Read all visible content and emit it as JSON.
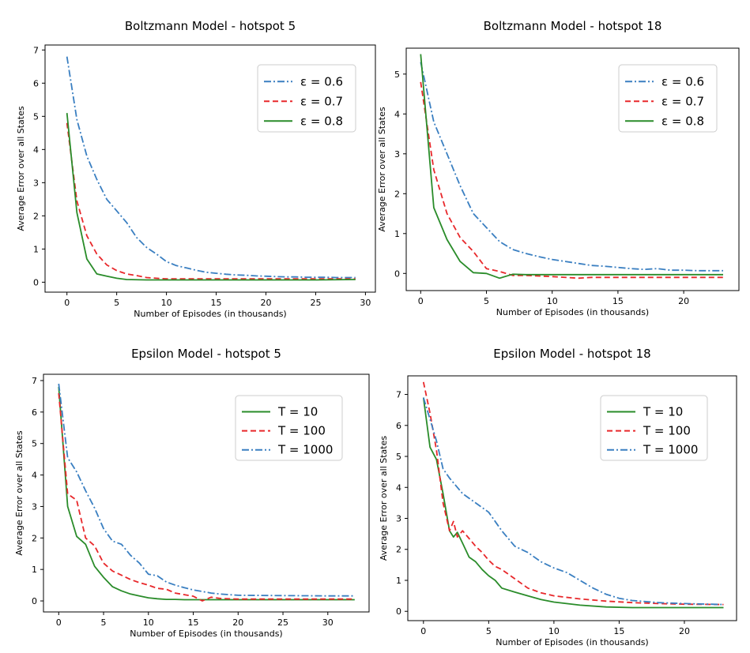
{
  "chart_data": [
    {
      "type": "line",
      "title": "Boltzmann Model - hotspot 5",
      "xlabel": "Number of Episodes (in thousands)",
      "ylabel": "Average Error over all States",
      "xlim": [
        -2.2,
        31
      ],
      "ylim": [
        -0.3,
        7.15
      ],
      "xticks": [
        0,
        5,
        10,
        15,
        20,
        25,
        30
      ],
      "yticks": [
        0,
        1,
        2,
        3,
        4,
        5,
        6,
        7
      ],
      "legend_position": "top-right",
      "series": [
        {
          "name": "ε = 0.6",
          "color": "#3a7fc1",
          "style": "dashdot",
          "x": [
            0,
            1,
            2,
            3,
            4,
            5,
            6,
            7,
            8,
            9,
            10,
            11,
            12,
            13,
            14,
            15,
            16,
            17,
            18,
            19,
            20,
            21,
            22,
            23,
            24,
            25,
            26,
            27,
            28,
            29
          ],
          "y": [
            6.8,
            4.9,
            3.8,
            3.1,
            2.5,
            2.15,
            1.8,
            1.35,
            1.05,
            0.85,
            0.62,
            0.5,
            0.43,
            0.36,
            0.3,
            0.27,
            0.24,
            0.22,
            0.21,
            0.19,
            0.18,
            0.17,
            0.16,
            0.16,
            0.15,
            0.15,
            0.15,
            0.14,
            0.14,
            0.14
          ]
        },
        {
          "name": "ε = 0.7",
          "color": "#e8282b",
          "style": "dashed",
          "x": [
            0,
            1,
            2,
            3,
            4,
            5,
            6,
            7,
            8,
            9,
            10,
            12,
            15,
            20,
            25,
            29
          ],
          "y": [
            4.8,
            2.45,
            1.4,
            0.85,
            0.52,
            0.35,
            0.25,
            0.2,
            0.14,
            0.12,
            0.1,
            0.1,
            0.1,
            0.1,
            0.1,
            0.1
          ]
        },
        {
          "name": "ε = 0.8",
          "color": "#2a8c2a",
          "style": "solid",
          "x": [
            0,
            1,
            2,
            3,
            4,
            5,
            6,
            8,
            10,
            15,
            20,
            25,
            29
          ],
          "y": [
            5.1,
            2.1,
            0.7,
            0.25,
            0.18,
            0.12,
            0.08,
            0.07,
            0.07,
            0.07,
            0.07,
            0.07,
            0.08
          ]
        }
      ]
    },
    {
      "type": "line",
      "title": "Boltzmann Model - hotspot 18",
      "xlabel": "Number of Episodes (in thousands)",
      "ylabel": "Average Error over all States",
      "xlim": [
        -1.1,
        24.2
      ],
      "ylim": [
        -0.43,
        5.65
      ],
      "xticks": [
        0,
        5,
        10,
        15,
        20
      ],
      "yticks": [
        0,
        1,
        2,
        3,
        4,
        5
      ],
      "legend_position": "top-right",
      "series": [
        {
          "name": "ε = 0.6",
          "color": "#3a7fc1",
          "style": "dashdot",
          "x": [
            0,
            1,
            2,
            3,
            4,
            5,
            6,
            7,
            8,
            9,
            10,
            11,
            12,
            13,
            14,
            15,
            16,
            17,
            18,
            19,
            20,
            21,
            22,
            23
          ],
          "y": [
            5.3,
            3.8,
            3.0,
            2.2,
            1.5,
            1.15,
            0.8,
            0.6,
            0.5,
            0.42,
            0.35,
            0.3,
            0.25,
            0.2,
            0.18,
            0.15,
            0.12,
            0.1,
            0.12,
            0.08,
            0.08,
            0.07,
            0.07,
            0.07
          ]
        },
        {
          "name": "ε = 0.7",
          "color": "#e8282b",
          "style": "dashed",
          "x": [
            0,
            1,
            2,
            3,
            4,
            5,
            6,
            7,
            8,
            10,
            12,
            13,
            15,
            18,
            20,
            23
          ],
          "y": [
            4.8,
            2.6,
            1.5,
            0.9,
            0.55,
            0.12,
            0.05,
            -0.05,
            -0.05,
            -0.08,
            -0.12,
            -0.1,
            -0.1,
            -0.1,
            -0.1,
            -0.1
          ]
        },
        {
          "name": "ε = 0.8",
          "color": "#2a8c2a",
          "style": "solid",
          "x": [
            0,
            1,
            2,
            3,
            4,
            5,
            6,
            7,
            8,
            10,
            15,
            20,
            23
          ],
          "y": [
            5.5,
            1.65,
            0.85,
            0.3,
            0.02,
            0.0,
            -0.12,
            -0.02,
            -0.03,
            -0.03,
            -0.03,
            -0.03,
            -0.03
          ]
        }
      ]
    },
    {
      "type": "line",
      "title": "Epsilon Model - hotspot 5",
      "xlabel": "Number of Episodes (in thousands)",
      "ylabel": "Average Error over all States",
      "xlim": [
        -1.7,
        34.6
      ],
      "ylim": [
        -0.35,
        7.2
      ],
      "xticks": [
        0,
        5,
        10,
        15,
        20,
        25,
        30
      ],
      "yticks": [
        0,
        1,
        2,
        3,
        4,
        5,
        6,
        7
      ],
      "legend_position": "top-right",
      "series": [
        {
          "name": "T = 10",
          "color": "#2a8c2a",
          "style": "solid",
          "x": [
            0,
            1,
            2,
            3,
            4,
            5,
            6,
            7,
            8,
            9,
            10,
            11,
            12,
            13,
            14,
            15,
            16,
            18,
            20,
            25,
            30,
            33
          ],
          "y": [
            6.8,
            3.0,
            2.05,
            1.8,
            1.1,
            0.75,
            0.45,
            0.32,
            0.22,
            0.16,
            0.1,
            0.07,
            0.05,
            0.05,
            0.04,
            0.04,
            0.04,
            0.04,
            0.04,
            0.04,
            0.04,
            0.04
          ]
        },
        {
          "name": "T = 100",
          "color": "#e8282b",
          "style": "dashed",
          "x": [
            0,
            1,
            2,
            3,
            4,
            5,
            6,
            7,
            8,
            9,
            10,
            11,
            12,
            13,
            14,
            15,
            16,
            17,
            18,
            20,
            25,
            30,
            33
          ],
          "y": [
            6.6,
            3.4,
            3.2,
            2.0,
            1.75,
            1.2,
            0.95,
            0.82,
            0.68,
            0.58,
            0.5,
            0.4,
            0.37,
            0.25,
            0.2,
            0.15,
            0.0,
            0.12,
            0.08,
            0.06,
            0.06,
            0.06,
            0.06
          ]
        },
        {
          "name": "T = 1000",
          "color": "#3a7fc1",
          "style": "dashdot",
          "x": [
            0,
            1,
            2,
            3,
            4,
            5,
            6,
            7,
            8,
            9,
            10,
            11,
            12,
            13,
            14,
            15,
            16,
            17,
            18,
            20,
            25,
            30,
            33
          ],
          "y": [
            6.9,
            4.55,
            4.1,
            3.5,
            2.95,
            2.3,
            1.9,
            1.8,
            1.45,
            1.2,
            0.85,
            0.8,
            0.6,
            0.5,
            0.42,
            0.35,
            0.3,
            0.25,
            0.22,
            0.18,
            0.17,
            0.16,
            0.16
          ]
        }
      ]
    },
    {
      "type": "line",
      "title": "Epsilon Model - hotspot 18",
      "xlabel": "Number of Episodes (in thousands)",
      "ylabel": "Average Error over all States",
      "xlim": [
        -1.2,
        24.0
      ],
      "ylim": [
        -0.3,
        7.6
      ],
      "xticks": [
        0,
        5,
        10,
        15,
        20
      ],
      "yticks": [
        0,
        1,
        2,
        3,
        4,
        5,
        6,
        7
      ],
      "legend_position": "top-right",
      "series": [
        {
          "name": "T = 10",
          "color": "#2a8c2a",
          "style": "solid",
          "x": [
            0,
            0.5,
            1,
            1.5,
            2,
            2.3,
            2.6,
            3,
            3.5,
            4,
            4.5,
            5,
            5.5,
            6,
            7,
            8,
            9,
            10,
            12,
            14,
            16,
            20,
            23
          ],
          "y": [
            6.9,
            5.3,
            4.9,
            3.8,
            2.6,
            2.4,
            2.55,
            2.2,
            1.75,
            1.6,
            1.35,
            1.15,
            1.0,
            0.75,
            0.62,
            0.5,
            0.38,
            0.3,
            0.2,
            0.14,
            0.12,
            0.12,
            0.12
          ]
        },
        {
          "name": "T = 100",
          "color": "#e8282b",
          "style": "dashed",
          "x": [
            0,
            0.5,
            1,
            1.5,
            2,
            2.3,
            2.6,
            3,
            3.5,
            4,
            4.5,
            5,
            5.5,
            6,
            7,
            8,
            9,
            10,
            12,
            14,
            16,
            18,
            20,
            23
          ],
          "y": [
            7.4,
            6.4,
            5.2,
            3.5,
            2.6,
            2.9,
            2.4,
            2.6,
            2.35,
            2.1,
            1.9,
            1.65,
            1.45,
            1.35,
            1.05,
            0.75,
            0.6,
            0.5,
            0.4,
            0.33,
            0.28,
            0.25,
            0.23,
            0.22
          ]
        },
        {
          "name": "T = 1000",
          "color": "#3a7fc1",
          "style": "dashdot",
          "x": [
            0,
            0.5,
            1,
            1.5,
            2,
            3,
            4,
            5,
            6,
            7,
            8,
            9,
            10,
            11,
            12,
            13,
            14,
            15,
            16,
            18,
            20,
            23
          ],
          "y": [
            6.9,
            6.2,
            5.5,
            4.6,
            4.3,
            3.8,
            3.5,
            3.2,
            2.6,
            2.1,
            1.9,
            1.6,
            1.4,
            1.25,
            1.0,
            0.75,
            0.55,
            0.42,
            0.35,
            0.28,
            0.25,
            0.22
          ]
        }
      ]
    }
  ]
}
